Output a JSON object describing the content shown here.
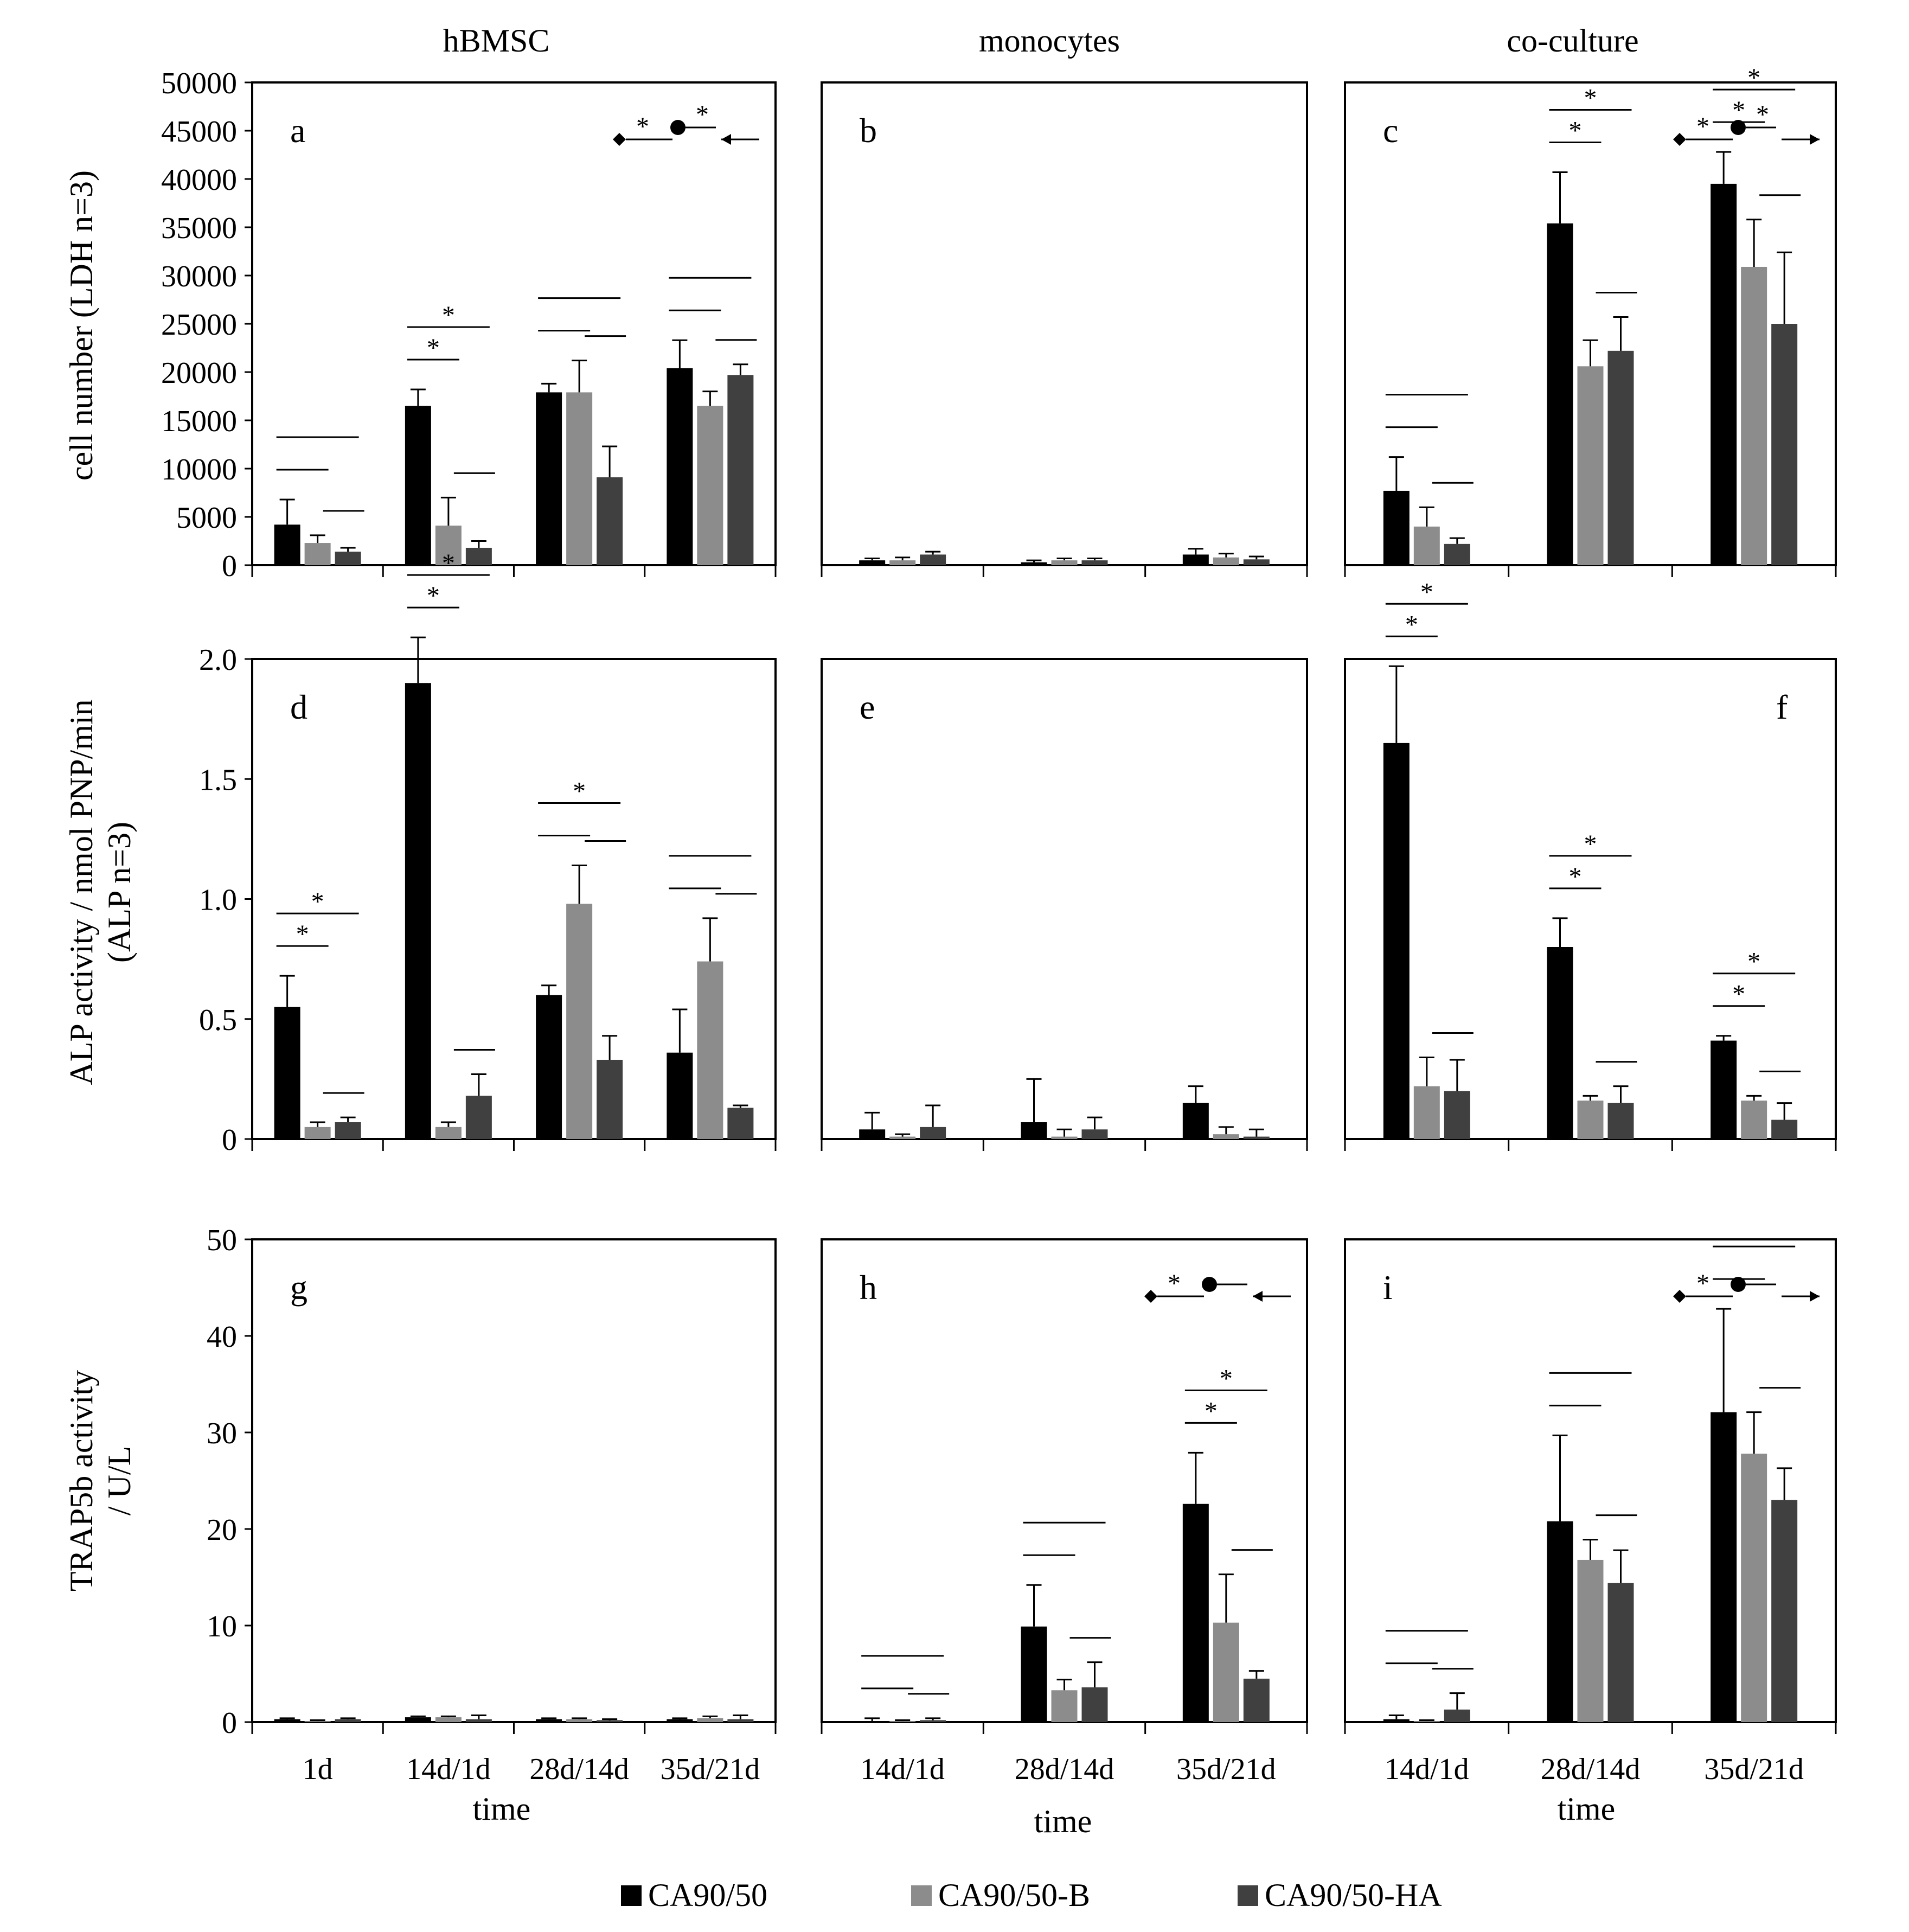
{
  "figure": {
    "column_titles": [
      "hBMSC",
      "monocytes",
      "co-culture"
    ],
    "x_title": "time",
    "legend": [
      {
        "label": "CA90/50",
        "color": "#000000"
      },
      {
        "label": "CA90/50-B",
        "color": "#8c8c8c"
      },
      {
        "label": "CA90/50-HA",
        "color": "#404040"
      }
    ]
  },
  "rows": [
    {
      "ylabel": [
        "cell number (LDH n=3)"
      ]
    },
    {
      "ylabel": [
        "ALP activity / nmol PNP/min",
        "(ALP n=3)"
      ]
    },
    {
      "ylabel": [
        "TRAP5b activity",
        "/ U/L"
      ]
    }
  ],
  "chart_data": [
    {
      "panel": "a",
      "type": "bar",
      "row": 0,
      "col": 0,
      "ylim": [
        0,
        50000
      ],
      "yticks": [
        0,
        5000,
        10000,
        15000,
        20000,
        25000,
        30000,
        35000,
        40000,
        45000,
        50000
      ],
      "ytick_labels": [
        "0",
        "5000",
        "10000",
        "15000",
        "20000",
        "25000",
        "30000",
        "35000",
        "40000",
        "45000",
        "50000"
      ],
      "categories": [
        "1d",
        "14d/1d",
        "28d/14d",
        "35d/21d"
      ],
      "series": [
        {
          "name": "CA90/50",
          "values": [
            4200,
            16500,
            17900,
            20400
          ],
          "errors": [
            2600,
            1700,
            900,
            2900
          ]
        },
        {
          "name": "CA90/50-B",
          "values": [
            2300,
            4100,
            17900,
            16500
          ],
          "errors": [
            800,
            2900,
            3300,
            1500
          ]
        },
        {
          "name": "CA90/50-HA",
          "values": [
            1400,
            1800,
            9100,
            19700
          ],
          "errors": [
            400,
            700,
            3200,
            1100
          ]
        }
      ],
      "significance": [
        {
          "group": 0,
          "stars": [
            false,
            false,
            false
          ]
        },
        {
          "group": 1,
          "stars": [
            true,
            true,
            false
          ]
        },
        {
          "group": 2,
          "stars": [
            false,
            false,
            false
          ]
        },
        {
          "group": 3,
          "stars": [
            false,
            false,
            false
          ]
        }
      ],
      "trend": {
        "text": "*",
        "text2": "*",
        "dir": "left"
      }
    },
    {
      "panel": "b",
      "type": "bar",
      "row": 0,
      "col": 1,
      "ylim": [
        0,
        50000
      ],
      "categories": [
        "14d/1d",
        "28d/14d",
        "35d/21d"
      ],
      "series": [
        {
          "name": "CA90/50",
          "values": [
            500,
            300,
            1100
          ],
          "errors": [
            200,
            200,
            600
          ]
        },
        {
          "name": "CA90/50-B",
          "values": [
            500,
            500,
            800
          ],
          "errors": [
            300,
            200,
            400
          ]
        },
        {
          "name": "CA90/50-HA",
          "values": [
            1100,
            500,
            600
          ],
          "errors": [
            300,
            200,
            300
          ]
        }
      ],
      "significance": []
    },
    {
      "panel": "c",
      "type": "bar",
      "row": 0,
      "col": 2,
      "ylim": [
        0,
        50000
      ],
      "categories": [
        "14d/1d",
        "28d/14d",
        "35d/21d"
      ],
      "series": [
        {
          "name": "CA90/50",
          "values": [
            7700,
            35400,
            39500
          ],
          "errors": [
            3500,
            5300,
            3300
          ]
        },
        {
          "name": "CA90/50-B",
          "values": [
            4000,
            20600,
            30900
          ],
          "errors": [
            2000,
            2700,
            4900
          ]
        },
        {
          "name": "CA90/50-HA",
          "values": [
            2200,
            22200,
            25000
          ],
          "errors": [
            600,
            3500,
            7400
          ]
        }
      ],
      "significance": [
        {
          "group": 0,
          "stars": [
            false,
            false,
            false
          ]
        },
        {
          "group": 1,
          "stars": [
            true,
            true,
            false
          ]
        },
        {
          "group": 2,
          "stars": [
            true,
            true,
            false
          ]
        }
      ],
      "trend": {
        "text": "*",
        "text2": "*",
        "dir": "right"
      }
    },
    {
      "panel": "d",
      "type": "bar",
      "row": 1,
      "col": 0,
      "ylim": [
        0,
        2.0
      ],
      "yticks": [
        0,
        0.5,
        1.0,
        1.5,
        2.0
      ],
      "ytick_labels": [
        "0",
        "0.5",
        "1.0",
        "1.5",
        "2.0"
      ],
      "categories": [
        "1d",
        "14d/1d",
        "28d/14d",
        "35d/21d"
      ],
      "series": [
        {
          "name": "CA90/50",
          "values": [
            0.55,
            1.9,
            0.6,
            0.36
          ],
          "errors": [
            0.13,
            0.19,
            0.04,
            0.18
          ]
        },
        {
          "name": "CA90/50-B",
          "values": [
            0.05,
            0.05,
            0.98,
            0.74
          ],
          "errors": [
            0.02,
            0.02,
            0.16,
            0.18
          ]
        },
        {
          "name": "CA90/50-HA",
          "values": [
            0.07,
            0.18,
            0.33,
            0.13
          ],
          "errors": [
            0.02,
            0.09,
            0.1,
            0.01
          ]
        }
      ],
      "significance": [
        {
          "group": 0,
          "stars": [
            true,
            true,
            false
          ]
        },
        {
          "group": 1,
          "stars": [
            true,
            true,
            false
          ]
        },
        {
          "group": 2,
          "stars": [
            false,
            true,
            false
          ]
        },
        {
          "group": 3,
          "stars": [
            false,
            false,
            false
          ]
        }
      ]
    },
    {
      "panel": "e",
      "type": "bar",
      "row": 1,
      "col": 1,
      "ylim": [
        0,
        2.0
      ],
      "categories": [
        "14d/1d",
        "28d/14d",
        "35d/21d"
      ],
      "series": [
        {
          "name": "CA90/50",
          "values": [
            0.04,
            0.07,
            0.15
          ],
          "errors": [
            0.07,
            0.18,
            0.07
          ]
        },
        {
          "name": "CA90/50-B",
          "values": [
            0.01,
            0.01,
            0.02
          ],
          "errors": [
            0.01,
            0.03,
            0.03
          ]
        },
        {
          "name": "CA90/50-HA",
          "values": [
            0.05,
            0.04,
            0.01
          ],
          "errors": [
            0.09,
            0.05,
            0.03
          ]
        }
      ],
      "significance": []
    },
    {
      "panel": "f",
      "type": "bar",
      "row": 1,
      "col": 2,
      "ylim": [
        0,
        2.0
      ],
      "categories": [
        "14d/1d",
        "28d/14d",
        "35d/21d"
      ],
      "series": [
        {
          "name": "CA90/50",
          "values": [
            1.65,
            0.8,
            0.41
          ],
          "errors": [
            0.32,
            0.12,
            0.02
          ]
        },
        {
          "name": "CA90/50-B",
          "values": [
            0.22,
            0.16,
            0.16
          ],
          "errors": [
            0.12,
            0.02,
            0.02
          ]
        },
        {
          "name": "CA90/50-HA",
          "values": [
            0.2,
            0.15,
            0.08
          ],
          "errors": [
            0.13,
            0.07,
            0.07
          ]
        }
      ],
      "significance": [
        {
          "group": 0,
          "stars": [
            true,
            true,
            false
          ]
        },
        {
          "group": 1,
          "stars": [
            true,
            true,
            false
          ]
        },
        {
          "group": 2,
          "stars": [
            true,
            true,
            false
          ]
        }
      ]
    },
    {
      "panel": "g",
      "type": "bar",
      "row": 2,
      "col": 0,
      "ylim": [
        0,
        50
      ],
      "yticks": [
        0,
        10,
        20,
        30,
        40,
        50
      ],
      "ytick_labels": [
        "0",
        "10",
        "20",
        "30",
        "40",
        "50"
      ],
      "categories": [
        "1d",
        "14d/1d",
        "28d/14d",
        "35d/21d"
      ],
      "series": [
        {
          "name": "CA90/50",
          "values": [
            0.3,
            0.5,
            0.3,
            0.3
          ],
          "errors": [
            0.1,
            0.1,
            0.1,
            0.1
          ]
        },
        {
          "name": "CA90/50-B",
          "values": [
            0.1,
            0.5,
            0.3,
            0.4
          ],
          "errors": [
            0.1,
            0.1,
            0.1,
            0.2
          ]
        },
        {
          "name": "CA90/50-HA",
          "values": [
            0.3,
            0.3,
            0.2,
            0.3
          ],
          "errors": [
            0.1,
            0.4,
            0.1,
            0.4
          ]
        }
      ],
      "significance": []
    },
    {
      "panel": "h",
      "type": "bar",
      "row": 2,
      "col": 1,
      "ylim": [
        0,
        50
      ],
      "categories": [
        "14d/1d",
        "28d/14d",
        "35d/21d"
      ],
      "series": [
        {
          "name": "CA90/50",
          "values": [
            0.1,
            9.9,
            22.6
          ],
          "errors": [
            0.3,
            4.3,
            5.3
          ]
        },
        {
          "name": "CA90/50-B",
          "values": [
            0.1,
            3.3,
            10.3
          ],
          "errors": [
            0.1,
            1.1,
            5.0
          ]
        },
        {
          "name": "CA90/50-HA",
          "values": [
            0.2,
            3.6,
            4.5
          ],
          "errors": [
            0.2,
            2.6,
            0.8
          ]
        }
      ],
      "significance": [
        {
          "group": 0,
          "stars": [
            false,
            false,
            false
          ]
        },
        {
          "group": 1,
          "stars": [
            false,
            false,
            false
          ]
        },
        {
          "group": 2,
          "stars": [
            true,
            true,
            false
          ]
        }
      ],
      "trend": {
        "text": "*",
        "dir": "left"
      }
    },
    {
      "panel": "i",
      "type": "bar",
      "row": 2,
      "col": 2,
      "ylim": [
        0,
        50
      ],
      "categories": [
        "14d/1d",
        "28d/14d",
        "35d/21d"
      ],
      "series": [
        {
          "name": "CA90/50",
          "values": [
            0.3,
            20.8,
            32.1
          ],
          "errors": [
            0.4,
            8.9,
            10.7
          ]
        },
        {
          "name": "CA90/50-B",
          "values": [
            0.1,
            16.8,
            27.8
          ],
          "errors": [
            0.1,
            2.1,
            4.3
          ]
        },
        {
          "name": "CA90/50-HA",
          "values": [
            1.3,
            14.4,
            23.0
          ],
          "errors": [
            1.7,
            3.4,
            3.3
          ]
        }
      ],
      "significance": [
        {
          "group": 0,
          "stars": [
            false,
            false,
            false
          ]
        },
        {
          "group": 1,
          "stars": [
            false,
            false,
            false
          ]
        },
        {
          "group": 2,
          "stars": [
            false,
            false,
            false
          ]
        }
      ],
      "trend": {
        "text": "*",
        "dir": "right"
      }
    }
  ]
}
